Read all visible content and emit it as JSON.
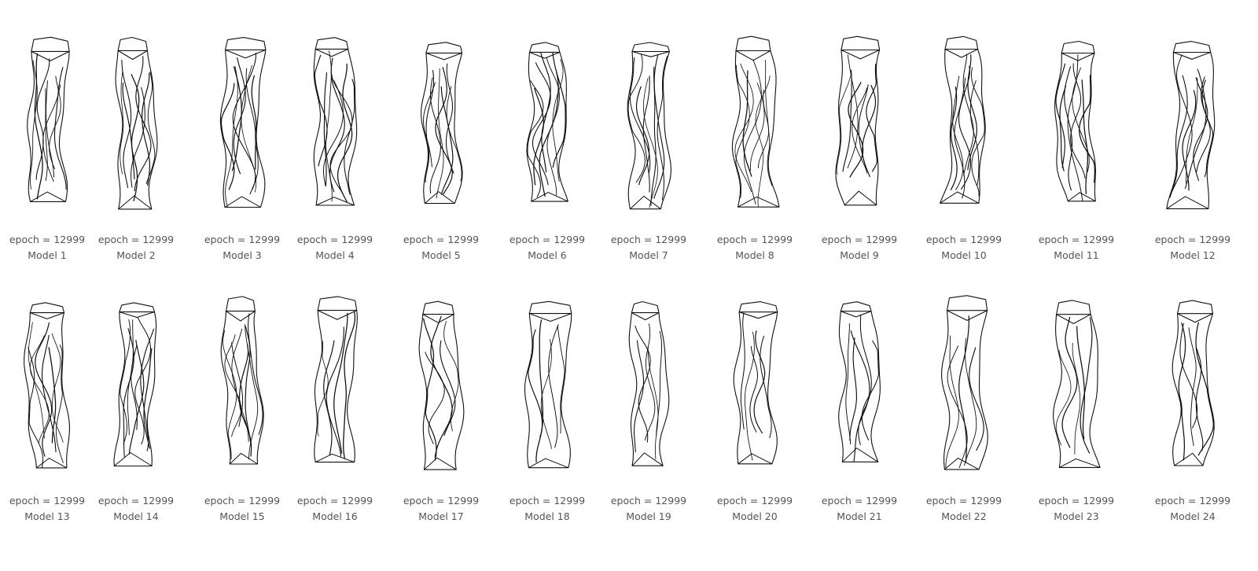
{
  "theme": {
    "stroke": "#111111",
    "label_color": "#555555",
    "background": "#ffffff"
  },
  "models": [
    {
      "epoch": "epoch = 12999",
      "name": "Model 1"
    },
    {
      "epoch": "epoch = 12999",
      "name": "Model 2"
    },
    {
      "epoch": "epoch = 12999",
      "name": "Model 3"
    },
    {
      "epoch": "epoch = 12999",
      "name": "Model 4"
    },
    {
      "epoch": "epoch = 12999",
      "name": "Model 5"
    },
    {
      "epoch": "epoch = 12999",
      "name": "Model 6"
    },
    {
      "epoch": "epoch = 12999",
      "name": "Model 7"
    },
    {
      "epoch": "epoch = 12999",
      "name": "Model 8"
    },
    {
      "epoch": "epoch = 12999",
      "name": "Model 9"
    },
    {
      "epoch": "epoch = 12999",
      "name": "Model 10"
    },
    {
      "epoch": "epoch = 12999",
      "name": "Model 11"
    },
    {
      "epoch": "epoch = 12999",
      "name": "Model 12"
    },
    {
      "epoch": "epoch = 12999",
      "name": "Model 13"
    },
    {
      "epoch": "epoch = 12999",
      "name": "Model 14"
    },
    {
      "epoch": "epoch = 12999",
      "name": "Model 15"
    },
    {
      "epoch": "epoch = 12999",
      "name": "Model 16"
    },
    {
      "epoch": "epoch = 12999",
      "name": "Model 17"
    },
    {
      "epoch": "epoch = 12999",
      "name": "Model 18"
    },
    {
      "epoch": "epoch = 12999",
      "name": "Model 19"
    },
    {
      "epoch": "epoch = 12999",
      "name": "Model 20"
    },
    {
      "epoch": "epoch = 12999",
      "name": "Model 21"
    },
    {
      "epoch": "epoch = 12999",
      "name": "Model 22"
    },
    {
      "epoch": "epoch = 12999",
      "name": "Model 23"
    },
    {
      "epoch": "epoch = 12999",
      "name": "Model 24"
    }
  ]
}
